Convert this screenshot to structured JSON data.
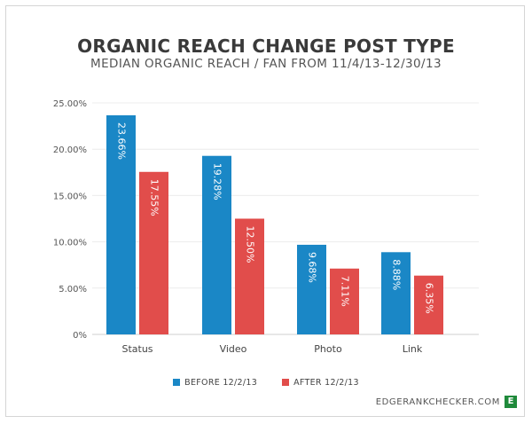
{
  "chart_data": {
    "type": "bar",
    "title": "ORGANIC REACH CHANGE POST TYPE",
    "subtitle": "MEDIAN ORGANIC REACH / FAN FROM 11/4/13-12/30/13",
    "categories": [
      "Status",
      "Video",
      "Photo",
      "Link"
    ],
    "series": [
      {
        "name": "BEFORE 12/2/13",
        "color": "#1a87c6",
        "values": [
          23.66,
          19.28,
          9.68,
          8.88
        ],
        "labels": [
          "23.66%",
          "19.28%",
          "9.68%",
          "8.88%"
        ]
      },
      {
        "name": "AFTER 12/2/13",
        "color": "#e14d4b",
        "values": [
          17.55,
          12.5,
          7.11,
          6.35
        ],
        "labels": [
          "17.55%",
          "12.50%",
          "7.11%",
          "6.35%"
        ]
      }
    ],
    "y_ticks": [
      "0%",
      "5.00%",
      "10.00%",
      "15.00%",
      "20.00%",
      "25.00%"
    ],
    "ylim": [
      0,
      25
    ],
    "grid": true,
    "legend_position": "bottom"
  },
  "watermark": {
    "text": "EDGERANKCHECKER.COM",
    "logo_letter": "E",
    "logo_color": "#1f8a3b"
  }
}
